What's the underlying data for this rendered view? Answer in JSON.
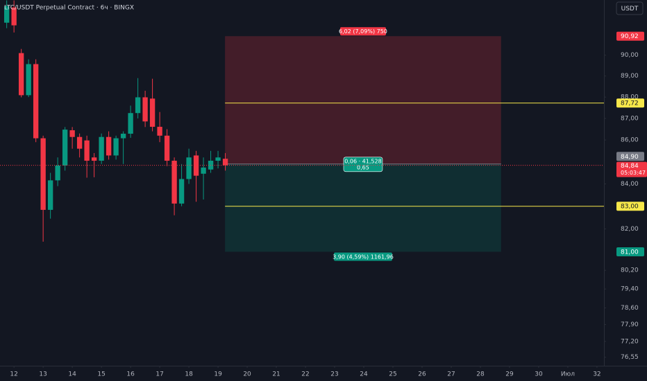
{
  "chart_data": {
    "type": "candlestick",
    "title": "LTC/USDT Perpetual Contract · 6ч · BINGX",
    "currency_button": "USDT",
    "log_scale": true,
    "grid": false,
    "up_color": "#089981",
    "down_color": "#f23645",
    "x": [
      11.75,
      12,
      12.25,
      12.5,
      12.75,
      13,
      13.25,
      13.5,
      13.75,
      14,
      14.25,
      14.5,
      14.75,
      15,
      15.25,
      15.5,
      15.75,
      16,
      16.25,
      16.5,
      16.75,
      17,
      17.25,
      17.5,
      17.75,
      18,
      18.25,
      18.5,
      18.75,
      19,
      19.25
    ],
    "open": [
      91.58,
      92.33,
      90.1,
      88.09,
      89.57,
      86.08,
      82.84,
      84.16,
      84.83,
      86.45,
      86.14,
      85.98,
      85.2,
      85.05,
      86.14,
      85.29,
      86.08,
      86.29,
      87.25,
      87.99,
      87.93,
      86.61,
      86.2,
      85.05,
      83.12,
      84.22,
      85.29,
      84.46,
      84.65,
      85.05,
      85.14
    ],
    "high": [
      92.68,
      92.68,
      90.3,
      89.8,
      89.8,
      86.2,
      84.5,
      85.2,
      86.6,
      86.6,
      86.3,
      86.2,
      85.4,
      86.3,
      86.4,
      86.2,
      86.4,
      87.6,
      88.9,
      88.3,
      88.87,
      87.3,
      86.5,
      85.2,
      84.9,
      85.6,
      85.5,
      85.2,
      85.5,
      85.5,
      85.4
    ],
    "low": [
      91.31,
      91.1,
      87.99,
      88.0,
      85.9,
      81.44,
      82.45,
      83.9,
      84.6,
      85.6,
      85.2,
      84.28,
      84.3,
      84.9,
      85.1,
      85.1,
      84.9,
      86.1,
      87.0,
      86.6,
      86.4,
      85.9,
      84.8,
      82.6,
      83.0,
      84.0,
      83.2,
      83.3,
      84.5,
      84.7,
      84.6
    ],
    "close": [
      92.4,
      91.45,
      88.09,
      89.57,
      86.08,
      82.84,
      84.16,
      84.83,
      86.48,
      86.14,
      85.6,
      85.05,
      85.05,
      86.14,
      85.29,
      86.08,
      86.29,
      87.25,
      87.99,
      86.86,
      86.61,
      86.2,
      85.05,
      83.12,
      84.22,
      85.2,
      84.37,
      84.74,
      85.05,
      85.2,
      84.84
    ],
    "xlim": [
      11.52,
      32.24
    ],
    "ylim": [
      76.2,
      92.7
    ],
    "xticks": [
      12,
      13,
      14,
      15,
      16,
      17,
      18,
      19,
      20,
      21,
      22,
      23,
      24,
      25,
      26,
      27,
      28,
      29,
      30,
      {
        "value": 31,
        "label": "Июл"
      },
      32
    ],
    "yticks": [
      {
        "value": 76.55,
        "label": "76,55"
      },
      {
        "value": 77.2,
        "label": "77,20"
      },
      {
        "value": 77.9,
        "label": "77,90"
      },
      {
        "value": 78.6,
        "label": "78,60"
      },
      {
        "value": 79.4,
        "label": "79,40"
      },
      {
        "value": 80.2,
        "label": "80,20"
      },
      {
        "value": 82,
        "label": "82,00"
      },
      {
        "value": 84,
        "label": "84,00"
      },
      {
        "value": 86,
        "label": "86,00"
      },
      {
        "value": 87,
        "label": "87,00"
      },
      {
        "value": 88,
        "label": "88,00"
      },
      {
        "value": 89,
        "label": "89,00"
      },
      {
        "value": 90,
        "label": "90,00"
      }
    ],
    "position": {
      "entry": 84.9,
      "stop": 90.92,
      "target": 81.0,
      "x_range": [
        19.24,
        28.71
      ],
      "stop_label": "6,02 (7,09%) 750",
      "target_label": "3,90 (4,59%) 1161,96",
      "center_label": [
        "0,06 · 41,528",
        "0,65"
      ]
    },
    "lines": [
      {
        "value": 87.72,
        "label": "87,72",
        "color": "#f7e74a"
      },
      {
        "value": 83.0,
        "label": "83,00",
        "color": "#f7e74a"
      }
    ],
    "badges": [
      {
        "value": 90.92,
        "label": "90,92",
        "color": "#f23645"
      },
      {
        "value": 84.9,
        "label": "84,90",
        "color": "#787b86"
      },
      {
        "value": 81.0,
        "label": "81,00",
        "color": "#089981"
      }
    ],
    "current_price": {
      "value": 84.84,
      "label": "84,84",
      "countdown": "05:03:47",
      "color": "#f23645"
    }
  }
}
